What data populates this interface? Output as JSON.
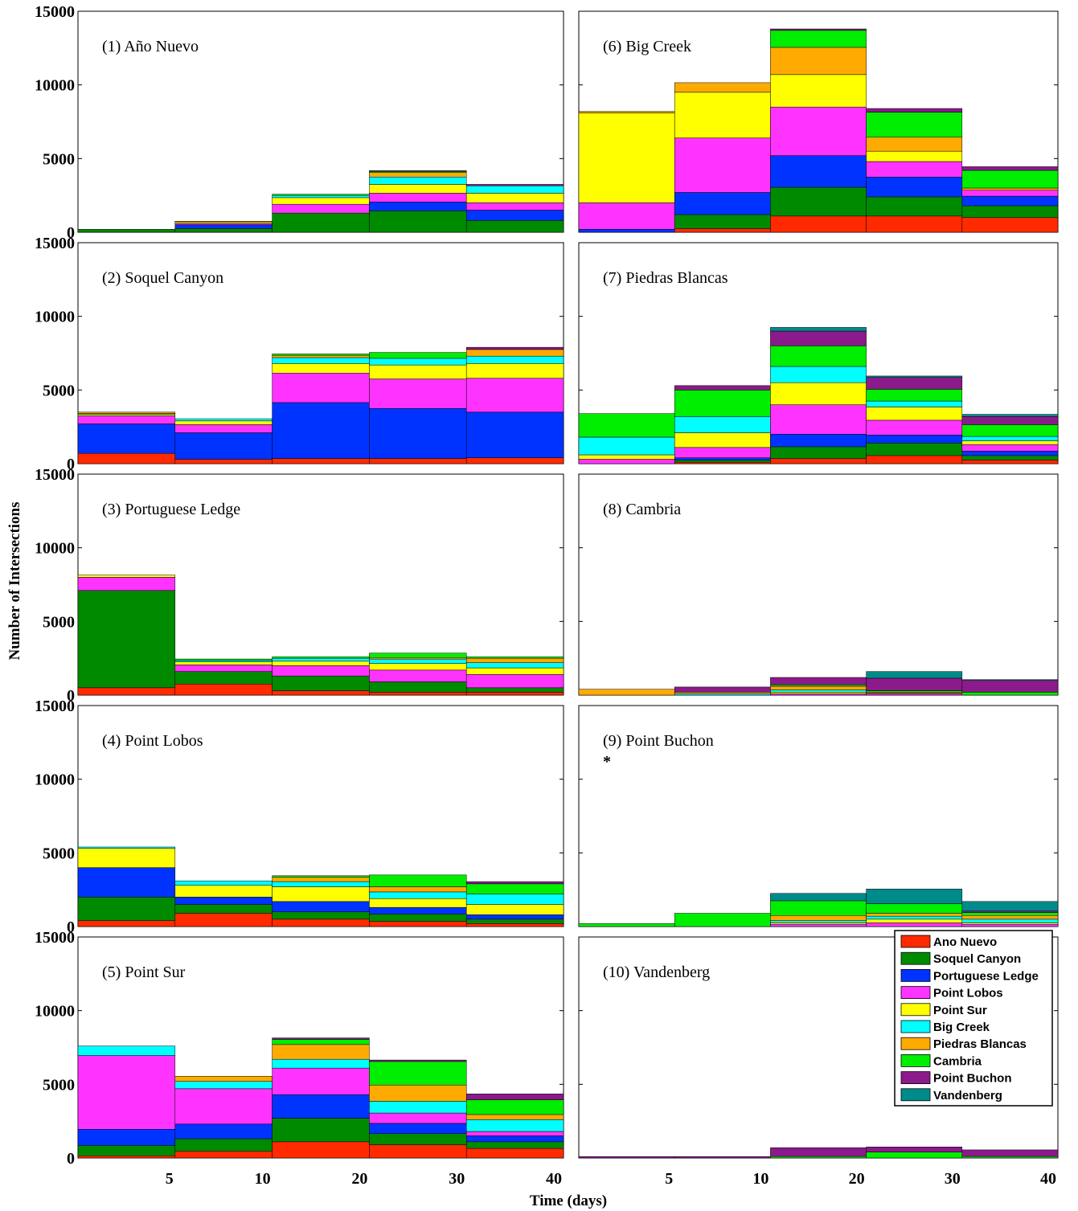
{
  "chart_data": {
    "type": "bar",
    "stacked": true,
    "xlabel": "Time (days)",
    "ylabel": "Number of Intersections",
    "ylim": [
      0,
      15000
    ],
    "yticks": [
      "0",
      "5000",
      "10000",
      "15000"
    ],
    "categories": [
      "5",
      "10",
      "20",
      "30",
      "40"
    ],
    "legend": {
      "placement": "bottom-right panel (10), top-right",
      "entries": [
        "Ano Nuevo",
        "Soquel Canyon",
        "Portuguese Ledge",
        "Point Lobos",
        "Point Sur",
        "Big Creek",
        "Piedras Blancas",
        "Cambria",
        "Point Buchon",
        "Vandenberg"
      ]
    },
    "series_colors": [
      "#ff2a00",
      "#008a00",
      "#0033ff",
      "#ff33ff",
      "#ffff00",
      "#00ffff",
      "#ffaa00",
      "#00ee00",
      "#8b1a8b",
      "#008b8b"
    ],
    "panels": [
      {
        "title": "(1) Año Nuevo",
        "column": 0,
        "row": 0,
        "segments": [
          [
            0,
            200,
            0,
            0,
            0,
            0,
            0,
            0,
            0,
            0
          ],
          [
            0,
            250,
            250,
            100,
            100,
            0,
            50,
            0,
            0,
            0
          ],
          [
            0,
            1300,
            0,
            600,
            450,
            150,
            0,
            80,
            0,
            0
          ],
          [
            0,
            1450,
            600,
            600,
            600,
            500,
            300,
            80,
            60,
            0
          ],
          [
            0,
            800,
            700,
            500,
            650,
            500,
            0,
            0,
            100,
            0
          ]
        ]
      },
      {
        "title": "(6) Big Creek",
        "column": 1,
        "row": 0,
        "segments": [
          [
            0,
            0,
            200,
            1800,
            6100,
            0,
            100,
            0,
            0,
            0
          ],
          [
            250,
            950,
            1500,
            3700,
            3100,
            0,
            650,
            0,
            0,
            0
          ],
          [
            1100,
            1950,
            2150,
            3300,
            2200,
            0,
            1850,
            1150,
            100,
            0
          ],
          [
            1100,
            1300,
            1350,
            1050,
            700,
            0,
            950,
            1700,
            250,
            0
          ],
          [
            1000,
            800,
            650,
            400,
            0,
            0,
            150,
            1200,
            250,
            0
          ]
        ]
      },
      {
        "title": "(2) Soquel Canyon",
        "column": 0,
        "row": 1,
        "segments": [
          [
            700,
            0,
            2000,
            550,
            100,
            50,
            100,
            0,
            0,
            0
          ],
          [
            300,
            0,
            1800,
            550,
            250,
            150,
            0,
            0,
            0,
            0
          ],
          [
            350,
            0,
            3800,
            2000,
            650,
            400,
            150,
            100,
            0,
            0
          ],
          [
            350,
            0,
            3400,
            2000,
            950,
            450,
            0,
            400,
            0,
            0
          ],
          [
            400,
            0,
            3100,
            2300,
            1000,
            500,
            450,
            0,
            150,
            0
          ]
        ]
      },
      {
        "title": "(7) Piedras Blancas",
        "column": 1,
        "row": 1,
        "segments": [
          [
            0,
            0,
            0,
            300,
            300,
            1200,
            0,
            1600,
            0,
            0
          ],
          [
            100,
            150,
            150,
            700,
            1000,
            1100,
            0,
            1800,
            300,
            0
          ],
          [
            350,
            800,
            850,
            2000,
            1500,
            1100,
            0,
            1400,
            1000,
            250
          ],
          [
            550,
            850,
            550,
            1000,
            900,
            400,
            0,
            800,
            800,
            100
          ],
          [
            250,
            300,
            300,
            450,
            250,
            300,
            0,
            800,
            550,
            150
          ]
        ]
      },
      {
        "title": "(3) Portuguese Ledge",
        "column": 0,
        "row": 2,
        "segments": [
          [
            500,
            6600,
            0,
            900,
            150,
            0,
            0,
            0,
            0,
            0
          ],
          [
            750,
            850,
            0,
            450,
            200,
            100,
            0,
            100,
            0,
            0
          ],
          [
            300,
            1000,
            0,
            700,
            300,
            200,
            0,
            100,
            0,
            0
          ],
          [
            200,
            700,
            0,
            800,
            450,
            300,
            100,
            300,
            0,
            0
          ],
          [
            200,
            300,
            0,
            900,
            450,
            350,
            300,
            100,
            0,
            0
          ]
        ]
      },
      {
        "title": "(8) Cambria",
        "column": 1,
        "row": 2,
        "segments": [
          [
            0,
            0,
            0,
            0,
            0,
            0,
            400,
            0,
            0,
            0
          ],
          [
            0,
            0,
            0,
            0,
            0,
            100,
            100,
            0,
            350,
            0
          ],
          [
            0,
            0,
            0,
            100,
            100,
            150,
            250,
            100,
            500,
            0
          ],
          [
            0,
            0,
            0,
            100,
            50,
            0,
            50,
            100,
            850,
            450
          ],
          [
            0,
            0,
            0,
            0,
            0,
            0,
            0,
            200,
            800,
            50
          ]
        ]
      },
      {
        "title": "(4) Point Lobos",
        "column": 0,
        "row": 3,
        "segments": [
          [
            400,
            1600,
            2000,
            0,
            1300,
            100,
            0,
            0,
            0,
            0
          ],
          [
            900,
            600,
            500,
            0,
            800,
            300,
            0,
            0,
            0,
            0
          ],
          [
            500,
            500,
            700,
            0,
            1000,
            350,
            300,
            100,
            0,
            0
          ],
          [
            350,
            500,
            450,
            0,
            600,
            450,
            350,
            800,
            0,
            0
          ],
          [
            200,
            300,
            300,
            0,
            700,
            700,
            0,
            700,
            150,
            0
          ]
        ]
      },
      {
        "title": "(9) Point Buchon",
        "column": 1,
        "row": 3,
        "annotation": "*",
        "segments": [
          [
            0,
            0,
            0,
            0,
            0,
            0,
            0,
            200,
            0,
            0
          ],
          [
            0,
            0,
            0,
            0,
            0,
            0,
            0,
            900,
            0,
            0
          ],
          [
            0,
            0,
            0,
            150,
            100,
            150,
            350,
            1000,
            0,
            500
          ],
          [
            0,
            0,
            0,
            250,
            250,
            200,
            200,
            650,
            0,
            1000
          ],
          [
            0,
            0,
            0,
            150,
            100,
            250,
            250,
            200,
            100,
            650
          ]
        ]
      },
      {
        "title": "(5) Point Sur",
        "column": 0,
        "row": 4,
        "segments": [
          [
            150,
            700,
            1100,
            5000,
            0,
            650,
            0,
            0,
            0,
            0
          ],
          [
            450,
            850,
            1000,
            2400,
            0,
            500,
            350,
            0,
            0,
            0
          ],
          [
            1100,
            1600,
            1600,
            1800,
            0,
            600,
            1000,
            350,
            100,
            0
          ],
          [
            900,
            750,
            700,
            700,
            0,
            800,
            1100,
            1600,
            100,
            0
          ],
          [
            650,
            450,
            400,
            300,
            0,
            800,
            350,
            1000,
            400,
            0
          ]
        ]
      },
      {
        "title": "(10) Vandenberg",
        "column": 1,
        "row": 4,
        "segments": [
          [
            0,
            0,
            0,
            0,
            0,
            0,
            0,
            0,
            100,
            0
          ],
          [
            0,
            0,
            0,
            0,
            0,
            0,
            0,
            0,
            100,
            0
          ],
          [
            0,
            0,
            0,
            0,
            0,
            0,
            0,
            100,
            600,
            0
          ],
          [
            0,
            0,
            0,
            0,
            0,
            0,
            0,
            400,
            350,
            0
          ],
          [
            0,
            0,
            0,
            0,
            0,
            0,
            0,
            100,
            450,
            0
          ]
        ]
      }
    ]
  }
}
